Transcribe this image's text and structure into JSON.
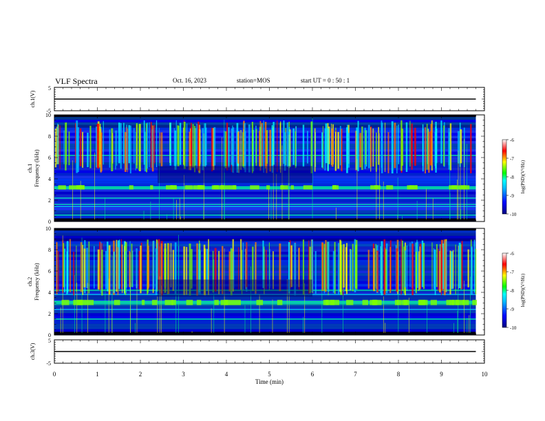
{
  "header": {
    "title": "VLF Spectra",
    "date": "Oct. 16, 2023",
    "station": "station=MOS",
    "start_ut": "start  UT =   0 : 50 : 1"
  },
  "colors": {
    "spectrogram_scale": [
      "#000000",
      "#00008b",
      "#0000ff",
      "#00bfff",
      "#00ffff",
      "#00ff7f",
      "#7fff00",
      "#ffff00",
      "#ff8000",
      "#ff0000",
      "#ffffff"
    ]
  },
  "chart_data": [
    {
      "type": "line",
      "ylabel": "ch.1(V)",
      "ylim": [
        -5,
        5
      ],
      "yticks": [
        "5",
        "-5"
      ],
      "x": [
        0,
        9.8
      ],
      "values": [
        0,
        0
      ]
    },
    {
      "type": "heatmap",
      "ylabel": "ch.1\nFrequency (kHz)",
      "ylim": [
        0,
        10
      ],
      "yticks": [
        "0",
        "2",
        "4",
        "6",
        "8",
        "10"
      ],
      "xlim": [
        0,
        9.8
      ],
      "emission_bands_khz": [
        [
          5.5,
          9.5
        ],
        [
          3.0,
          3.3
        ],
        [
          1.2,
          1.6
        ]
      ],
      "colorbar": {
        "label": "log(PSD)(V²/Hz)",
        "ticks": [
          "-6",
          "-7",
          "-8",
          "-9",
          "-10"
        ],
        "range": [
          -10,
          -6
        ]
      }
    },
    {
      "type": "heatmap",
      "ylabel": "ch.2\nFrequency (kHz)",
      "ylim": [
        0,
        10
      ],
      "yticks": [
        "0",
        "2",
        "4",
        "6",
        "8",
        "10"
      ],
      "xlim": [
        0,
        9.8
      ],
      "emission_bands_khz": [
        [
          4.5,
          9.0
        ],
        [
          2.8,
          3.2
        ]
      ],
      "colorbar": {
        "label": "log(PSD)(V²/Hz)",
        "ticks": [
          "-6",
          "-7",
          "-8",
          "-9",
          "-10"
        ],
        "range": [
          -10,
          -6
        ]
      }
    },
    {
      "type": "line",
      "ylabel": "ch.3(V)",
      "ylim": [
        -5,
        5
      ],
      "yticks": [
        "5",
        "-5"
      ],
      "x": [
        0,
        9.8
      ],
      "values": [
        0,
        0
      ]
    }
  ],
  "xaxis": {
    "label": "Time  (min)",
    "ticks": [
      "0",
      "1",
      "2",
      "3",
      "4",
      "5",
      "6",
      "7",
      "8",
      "9",
      "10"
    ],
    "xlim": [
      0,
      10
    ]
  }
}
